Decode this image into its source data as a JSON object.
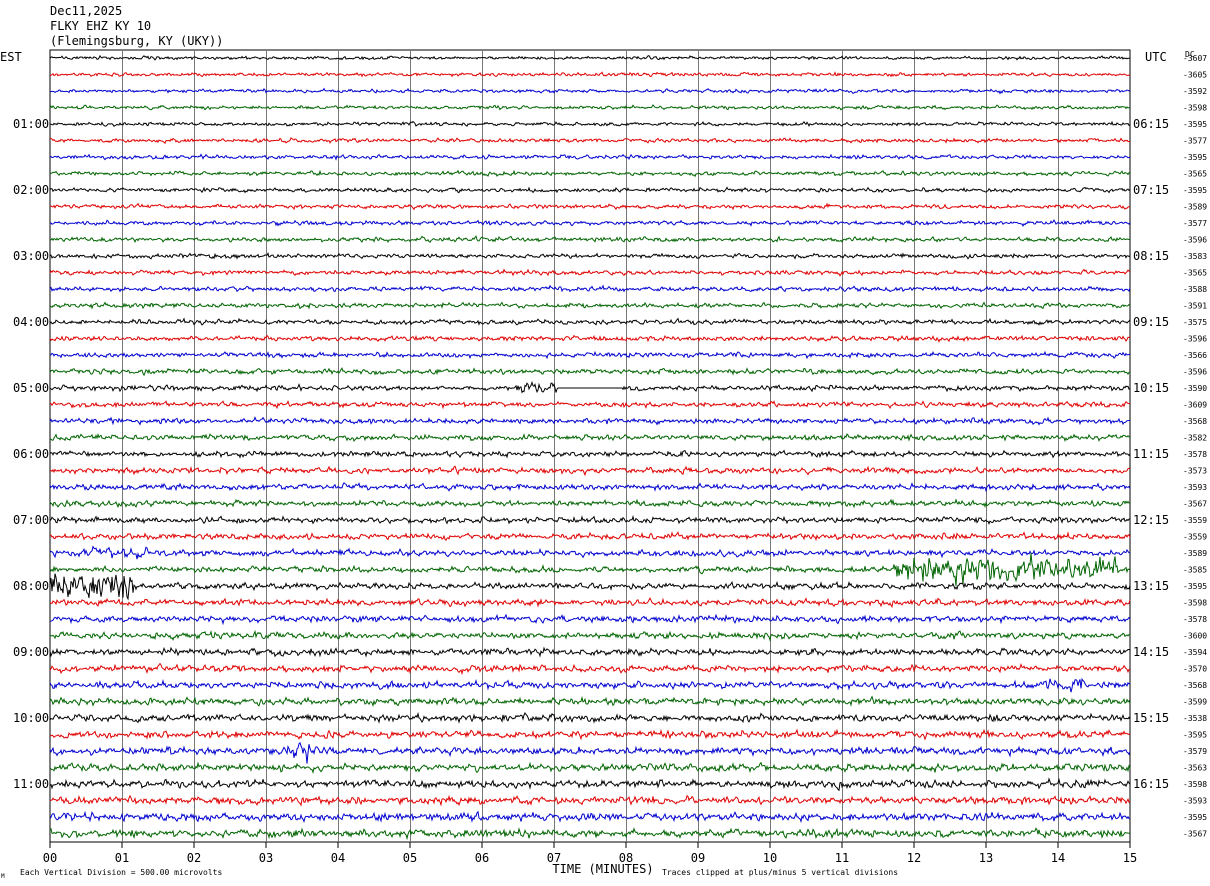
{
  "header": {
    "date": "Dec11,2025",
    "station": "FLKY EHZ KY 10",
    "location": "(Flemingsburg, KY (UKY))"
  },
  "chart_data": {
    "type": "line",
    "title": "",
    "xlabel": "TIME (MINUTES)",
    "ylabel": "",
    "x_ticks": [
      "00",
      "01",
      "02",
      "03",
      "04",
      "05",
      "06",
      "07",
      "08",
      "09",
      "10",
      "11",
      "12",
      "13",
      "14",
      "15"
    ],
    "xlim": [
      0,
      15
    ],
    "left_axis_label": "EST",
    "right_axis_label": "UTC",
    "dc_label": "DC",
    "est_hour_labels": [
      "01:00",
      "02:00",
      "03:00",
      "04:00",
      "05:00",
      "06:00",
      "07:00",
      "08:00",
      "09:00",
      "10:00",
      "11:00"
    ],
    "utc_hour_labels": [
      "06:15",
      "07:15",
      "08:15",
      "09:15",
      "10:15",
      "11:15",
      "12:15",
      "13:15",
      "14:15",
      "15:15",
      "16:15"
    ],
    "trace_count": 48,
    "trace_colors": [
      "#000000",
      "#e00000",
      "#0000d0",
      "#006400"
    ],
    "dc_offsets": [
      "-3607",
      "-3605",
      "-3592",
      "-3598",
      "-3595",
      "-3577",
      "-3595",
      "-3565",
      "-3595",
      "-3589",
      "-3577",
      "-3596",
      "-3583",
      "-3565",
      "-3588",
      "-3591",
      "-3575",
      "-3596",
      "-3566",
      "-3596",
      "-3590",
      "-3609",
      "-3568",
      "-3582",
      "-3578",
      "-3573",
      "-3593",
      "-3567",
      "-3559",
      "-3559",
      "-3589",
      "-3585",
      "-3595",
      "-3598",
      "-3578",
      "-3600",
      "-3594",
      "-3570",
      "-3568",
      "-3599",
      "-3538",
      "-3595",
      "-3579",
      "-3563",
      "-3598",
      "-3593",
      "-3595",
      "-3567"
    ],
    "grid": true,
    "clipping": {
      "text": "Traces clipped at plus/minus 5 vertical divisions",
      "divisions": 5
    },
    "scale": {
      "text": "Each Vertical Division =  500.00 microvolts",
      "microvolts_per_division": 500
    }
  },
  "footer": {
    "time_label": "TIME (MINUTES)",
    "scale_note": "Each Vertical Division =  500.00 microvolts",
    "clip_note": "Traces clipped at plus/minus 5 vertical divisions",
    "corner_mark": "M"
  }
}
